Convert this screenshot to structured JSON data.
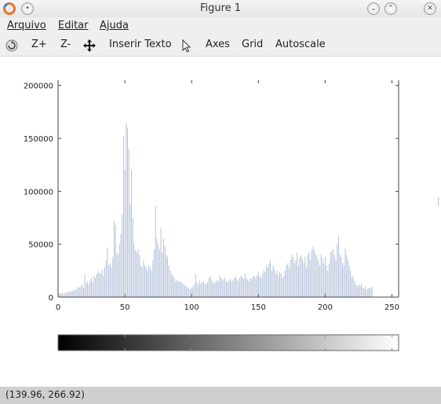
{
  "window": {
    "title": "Figure 1",
    "left_icons": [
      "octave-logo-icon",
      "menu-circle-icon"
    ],
    "right_icons": [
      "minimize-icon",
      "maximize-icon",
      "close-icon"
    ]
  },
  "menu": [
    "Arquivo",
    "Editar",
    "Ajuda"
  ],
  "toolbar": {
    "rotate_icon": "rotate-icon",
    "zoom_in": "Z+",
    "zoom_out": "Z-",
    "pan_icon": "pan-icon",
    "insert_text": "Inserir Texto",
    "select_icon": "pointer-icon",
    "axes": "Axes",
    "grid": "Grid",
    "autoscale": "Autoscale"
  },
  "status": {
    "coords": "(139.96, 266.92)"
  },
  "colors": {
    "bars": "#b7c4dc",
    "axis": "#444444",
    "toolbar": "#efefef",
    "status": "#cfcfcf"
  },
  "chart_data": {
    "type": "bar",
    "xlim": [
      0,
      255
    ],
    "ylim": [
      0,
      205000
    ],
    "xticks": [
      0,
      50,
      100,
      150,
      200,
      250
    ],
    "yticks": [
      0,
      50000,
      100000,
      150000,
      200000
    ],
    "x_start": 0,
    "values": [
      8000,
      4000,
      3000,
      4000,
      3000,
      3500,
      4000,
      5000,
      4500,
      6000,
      5000,
      6000,
      7000,
      6500,
      8000,
      10000,
      9000,
      10000,
      12000,
      9000,
      22000,
      13000,
      15000,
      12000,
      16000,
      18000,
      14000,
      20000,
      18000,
      22000,
      24000,
      23000,
      22000,
      26000,
      20000,
      28000,
      35000,
      47000,
      30000,
      32000,
      28000,
      38000,
      72000,
      68000,
      42000,
      40000,
      50000,
      60000,
      78000,
      152000,
      120000,
      165000,
      160000,
      140000,
      88000,
      120000,
      75000,
      50000,
      44000,
      42000,
      45000,
      40000,
      30000,
      28000,
      35000,
      30000,
      28000,
      25000,
      30000,
      28000,
      25000,
      35000,
      45000,
      86000,
      55000,
      50000,
      45000,
      65000,
      42000,
      55000,
      48000,
      40000,
      38000,
      30000,
      25000,
      22000,
      20000,
      18000,
      15000,
      16000,
      15000,
      14000,
      15000,
      13000,
      12000,
      11000,
      10000,
      9000,
      8000,
      7000,
      9000,
      10000,
      12000,
      22000,
      14000,
      12000,
      16000,
      13000,
      14000,
      15000,
      12000,
      13000,
      14000,
      18000,
      20000,
      16000,
      13000,
      15000,
      14000,
      16000,
      15000,
      20000,
      18000,
      17000,
      16000,
      18000,
      15000,
      14000,
      16000,
      17000,
      15000,
      16000,
      18000,
      20000,
      17000,
      15000,
      18000,
      20000,
      19000,
      17000,
      22000,
      18000,
      16000,
      15000,
      18000,
      17000,
      19000,
      20000,
      18000,
      21000,
      24000,
      20000,
      18000,
      22000,
      25000,
      24000,
      30000,
      28000,
      32000,
      35000,
      25000,
      30000,
      27000,
      22000,
      25000,
      20000,
      24000,
      22000,
      18000,
      20000,
      25000,
      30000,
      32000,
      28000,
      35000,
      40000,
      38000,
      32000,
      35000,
      42000,
      30000,
      38000,
      40000,
      36000,
      32000,
      38000,
      28000,
      40000,
      42000,
      35000,
      45000,
      48000,
      44000,
      40000,
      38000,
      35000,
      30000,
      40000,
      36000,
      32000,
      38000,
      30000,
      25000,
      32000,
      42000,
      44000,
      45000,
      40000,
      35000,
      50000,
      58000,
      40000,
      38000,
      32000,
      30000,
      46000,
      40000,
      35000,
      30000,
      25000,
      18000,
      20000,
      15000,
      12000,
      10000,
      12000,
      11000,
      13000,
      9000,
      8000,
      10000,
      7000,
      8000,
      9000,
      8000,
      10000
    ],
    "colorbar": {
      "gradient": [
        "#000000",
        "#ffffff"
      ],
      "xlim": [
        0,
        255
      ]
    }
  }
}
